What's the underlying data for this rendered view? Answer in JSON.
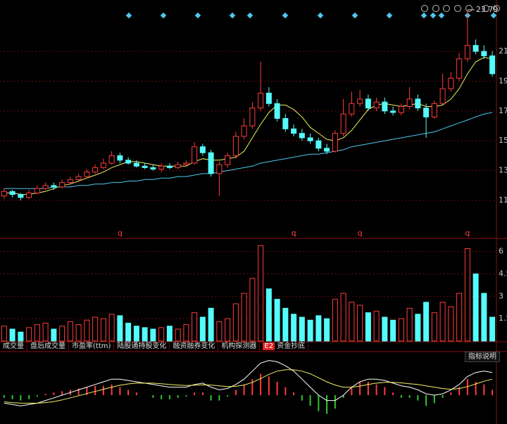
{
  "chart_data": [
    {
      "type": "candlestick",
      "open": [
        11.3,
        11.6,
        11.4,
        11.2,
        11.5,
        11.8,
        12.0,
        11.9,
        12.2,
        12.4,
        12.6,
        12.9,
        13.2,
        13.5,
        14.0,
        13.7,
        13.5,
        13.3,
        13.2,
        13.1,
        13.3,
        13.2,
        13.4,
        13.5,
        14.6,
        14.2,
        12.8,
        13.4,
        14.0,
        15.3,
        16.0,
        17.2,
        18.2,
        17.5,
        16.5,
        15.8,
        15.5,
        15.2,
        15.0,
        14.5,
        14.3,
        15.5,
        16.8,
        17.5,
        17.8,
        17.2,
        17.6,
        17.0,
        16.9,
        17.3,
        17.8,
        17.2,
        16.6,
        17.5,
        18.5,
        19.2,
        20.5,
        21.4,
        21.0,
        20.7
      ],
      "high": [
        11.8,
        11.7,
        11.5,
        11.7,
        12.0,
        12.2,
        12.2,
        12.4,
        12.6,
        12.8,
        13.1,
        13.4,
        13.8,
        14.3,
        14.2,
        13.9,
        13.7,
        13.5,
        13.4,
        13.5,
        13.5,
        13.6,
        13.7,
        14.9,
        14.8,
        14.4,
        13.6,
        14.2,
        15.6,
        16.5,
        17.6,
        20.3,
        18.6,
        17.8,
        16.8,
        16.1,
        15.8,
        15.5,
        15.2,
        14.8,
        15.7,
        17.8,
        18.3,
        18.4,
        18.1,
        17.9,
        17.9,
        17.3,
        17.5,
        18.6,
        18.1,
        17.5,
        17.7,
        19.5,
        19.6,
        20.9,
        23.79,
        21.8,
        21.4,
        21.0
      ],
      "low": [
        11.1,
        11.2,
        11.0,
        11.1,
        11.4,
        11.7,
        11.7,
        11.8,
        12.1,
        12.3,
        12.5,
        12.8,
        13.1,
        13.4,
        13.5,
        13.4,
        13.2,
        13.1,
        13.0,
        12.9,
        13.1,
        13.1,
        13.3,
        13.4,
        14.0,
        12.6,
        11.3,
        13.2,
        13.8,
        15.1,
        15.8,
        17.0,
        17.3,
        16.3,
        15.6,
        15.3,
        15.0,
        14.8,
        14.3,
        14.1,
        14.2,
        15.3,
        16.6,
        17.3,
        17.0,
        17.0,
        16.8,
        16.7,
        16.7,
        17.1,
        17.0,
        15.2,
        16.5,
        17.4,
        18.3,
        19.0,
        20.3,
        20.8,
        20.5,
        19.3
      ],
      "close": [
        11.6,
        11.4,
        11.2,
        11.5,
        11.8,
        12.0,
        11.9,
        12.2,
        12.4,
        12.6,
        12.9,
        13.2,
        13.5,
        14.0,
        13.7,
        13.5,
        13.3,
        13.2,
        13.1,
        13.3,
        13.2,
        13.4,
        13.5,
        14.6,
        14.2,
        12.8,
        13.4,
        14.0,
        15.3,
        16.0,
        17.2,
        18.2,
        17.5,
        16.5,
        15.8,
        15.5,
        15.2,
        15.0,
        14.5,
        14.3,
        15.5,
        16.8,
        17.5,
        17.8,
        17.2,
        17.6,
        17.0,
        16.9,
        17.3,
        17.8,
        17.2,
        16.6,
        17.5,
        18.5,
        19.2,
        20.5,
        21.4,
        21.0,
        20.7,
        19.5
      ],
      "lines": [
        {
          "color": "#f0f060",
          "values": [
            11.5,
            11.5,
            11.4,
            11.4,
            11.5,
            11.6,
            11.8,
            12.0,
            12.1,
            12.3,
            12.5,
            12.7,
            12.9,
            13.2,
            13.4,
            13.6,
            13.6,
            13.5,
            13.4,
            13.3,
            13.3,
            13.3,
            13.3,
            13.6,
            13.8,
            13.7,
            13.7,
            13.8,
            13.9,
            14.3,
            15.2,
            16.1,
            16.9,
            17.4,
            17.4,
            17.1,
            16.6,
            15.9,
            15.5,
            15.1,
            15.0,
            15.2,
            15.7,
            16.4,
            17.1,
            17.4,
            17.5,
            17.4,
            17.3,
            17.4,
            17.5,
            17.3,
            17.3,
            17.4,
            17.8,
            18.5,
            19.5,
            20.3,
            20.6,
            20.5
          ]
        },
        {
          "color": "#4cc8f0",
          "values": [
            11.8,
            11.8,
            11.8,
            11.8,
            11.8,
            11.8,
            11.9,
            11.9,
            11.9,
            12.0,
            12.0,
            12.1,
            12.1,
            12.2,
            12.2,
            12.3,
            12.3,
            12.4,
            12.4,
            12.5,
            12.5,
            12.6,
            12.6,
            12.7,
            12.8,
            12.8,
            12.9,
            13.0,
            13.1,
            13.2,
            13.3,
            13.5,
            13.6,
            13.7,
            13.8,
            13.9,
            14.0,
            14.1,
            14.1,
            14.2,
            14.3,
            14.4,
            14.6,
            14.7,
            14.8,
            14.9,
            15.0,
            15.1,
            15.2,
            15.3,
            15.4,
            15.5,
            15.6,
            15.8,
            16.0,
            16.2,
            16.4,
            16.6,
            16.8,
            16.9
          ]
        }
      ],
      "markers": [
        {
          "label": "q",
          "index": 14
        },
        {
          "label": "q",
          "index": 35
        },
        {
          "label": "q",
          "index": 43
        },
        {
          "label": "q",
          "index": 56
        }
      ],
      "ylim": [
        8.5,
        24.07
      ],
      "yticks": [
        11,
        13,
        15,
        17,
        19,
        21
      ],
      "grid": true,
      "up_color": "#ff3c3c",
      "down_color": "#54fcfc"
    },
    {
      "type": "volume",
      "values": [
        1.0,
        0.8,
        0.6,
        0.9,
        1.1,
        1.2,
        0.8,
        1.0,
        1.3,
        1.1,
        1.4,
        1.6,
        1.5,
        1.8,
        1.7,
        1.2,
        1.0,
        0.9,
        0.8,
        0.9,
        1.0,
        0.8,
        1.1,
        1.9,
        1.6,
        2.2,
        1.3,
        1.5,
        2.5,
        3.2,
        4.2,
        6.4,
        3.5,
        2.8,
        2.2,
        1.8,
        1.6,
        1.4,
        1.7,
        1.5,
        2.8,
        3.2,
        2.6,
        2.4,
        1.9,
        2.0,
        1.6,
        1.4,
        1.5,
        2.2,
        1.8,
        2.6,
        1.9,
        2.6,
        2.3,
        3.2,
        6.2,
        4.5,
        3.2,
        1.6
      ],
      "ylim": [
        0,
        6.6
      ],
      "yticks": [
        1.5,
        3,
        4.5,
        6
      ],
      "grid": true
    },
    {
      "type": "macd",
      "values": [
        -0.1,
        -0.15,
        -0.2,
        -0.15,
        -0.05,
        0.05,
        0.1,
        0.15,
        0.2,
        0.25,
        0.3,
        0.35,
        0.35,
        0.4,
        0.3,
        0.2,
        0.1,
        0,
        -0.1,
        -0.15,
        -0.15,
        -0.1,
        -0.05,
        0.1,
        0.1,
        -0.2,
        -0.2,
        -0.05,
        0.2,
        0.4,
        0.6,
        0.8,
        0.7,
        0.5,
        0.3,
        0.1,
        -0.2,
        -0.4,
        -0.6,
        -0.7,
        -0.5,
        -0.1,
        0.3,
        0.5,
        0.5,
        0.4,
        0.3,
        0.1,
        -0.1,
        -0.1,
        -0.2,
        -0.4,
        -0.3,
        -0.1,
        0.1,
        0.3,
        0.6,
        0.5,
        0.4,
        0.2
      ],
      "lines": [
        {
          "color": "#ffffff",
          "values": [
            -0.3,
            -0.35,
            -0.4,
            -0.35,
            -0.3,
            -0.2,
            -0.1,
            0,
            0.1,
            0.2,
            0.3,
            0.4,
            0.5,
            0.6,
            0.6,
            0.55,
            0.5,
            0.45,
            0.4,
            0.35,
            0.3,
            0.3,
            0.3,
            0.4,
            0.45,
            0.3,
            0.2,
            0.25,
            0.4,
            0.6,
            0.9,
            1.2,
            1.3,
            1.25,
            1.1,
            0.9,
            0.6,
            0.3,
            0,
            -0.2,
            -0.2,
            0,
            0.3,
            0.5,
            0.6,
            0.6,
            0.55,
            0.45,
            0.35,
            0.3,
            0.2,
            0.05,
            0,
            0.05,
            0.2,
            0.4,
            0.7,
            0.85,
            0.9,
            0.85
          ]
        },
        {
          "color": "#f0f060",
          "values": [
            -0.25,
            -0.28,
            -0.3,
            -0.3,
            -0.3,
            -0.28,
            -0.24,
            -0.18,
            -0.1,
            -0.02,
            0.06,
            0.14,
            0.22,
            0.3,
            0.37,
            0.42,
            0.45,
            0.45,
            0.45,
            0.43,
            0.4,
            0.38,
            0.36,
            0.37,
            0.39,
            0.38,
            0.35,
            0.32,
            0.33,
            0.38,
            0.48,
            0.62,
            0.78,
            0.9,
            0.95,
            0.95,
            0.9,
            0.8,
            0.65,
            0.5,
            0.38,
            0.3,
            0.3,
            0.34,
            0.4,
            0.45,
            0.48,
            0.48,
            0.46,
            0.43,
            0.4,
            0.35,
            0.3,
            0.25,
            0.22,
            0.25,
            0.32,
            0.42,
            0.52,
            0.6
          ]
        }
      ],
      "ylim": [
        -1.0,
        1.5
      ],
      "pos_color": "#ff3c3c",
      "neg_color": "#2ec82e"
    }
  ],
  "tabs": [
    "成交量",
    "盘后成交量",
    "市盈率(ttm)",
    "陆股通持股变化",
    "融资融券变化",
    "机构探测器"
  ],
  "badge": "E2",
  "badge_tab": "资金抄底",
  "help_button": "指标说明"
}
